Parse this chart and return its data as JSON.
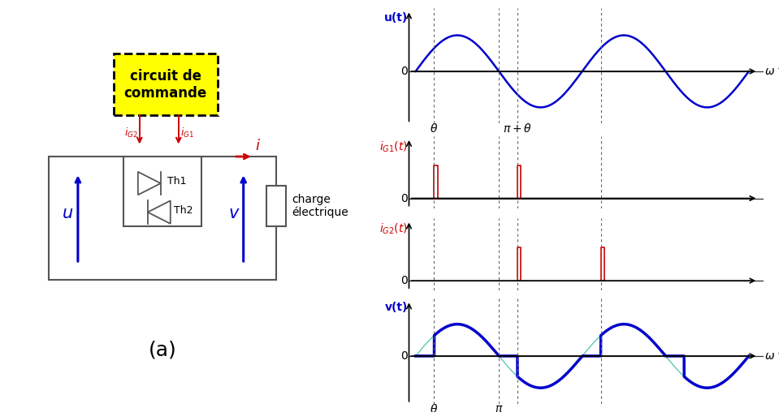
{
  "bg_color": "#ffffff",
  "blue_color": "#0000cc",
  "red_color": "#cc0000",
  "cyan_color": "#00ccaa",
  "gray_color": "#555555",
  "theta": 0.7,
  "pi": 3.14159265,
  "circuit_xlim": [
    0,
    12
  ],
  "circuit_ylim": [
    0,
    10
  ]
}
